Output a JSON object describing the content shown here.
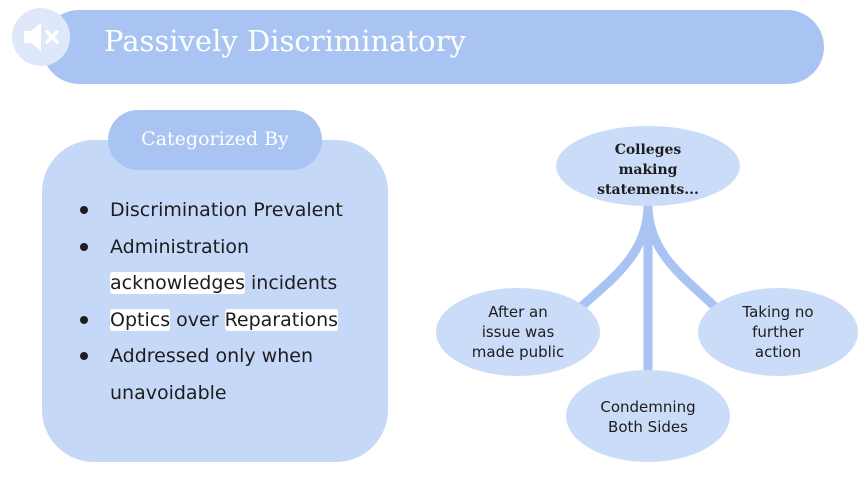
{
  "title": "Passively Discriminatory",
  "icons": {
    "speaker": "speaker-muted-icon"
  },
  "categorized": {
    "label": "Categorized By",
    "bullets": [
      [
        "Discrimination Prevalent"
      ],
      [
        "Administration",
        "acknowledges",
        "incidents"
      ],
      [
        "Optics",
        "over",
        "Reparations"
      ],
      [
        "Addressed only when",
        "unavoidable"
      ]
    ]
  },
  "diagram": {
    "top": [
      "Colleges",
      "making",
      "statements..."
    ],
    "left": [
      "After an",
      "issue was",
      "made public"
    ],
    "right": [
      "Taking no",
      "further",
      "action"
    ],
    "bottom": [
      "Condemning",
      "Both Sides"
    ]
  },
  "colors": {
    "title_bar": "#a9c3f3",
    "panel": "#c6d8f8",
    "node": "#cadcf8",
    "connector": "#a9c3f3"
  }
}
